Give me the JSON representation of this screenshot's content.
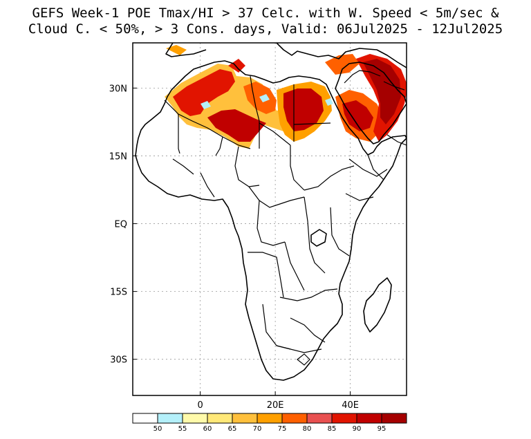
{
  "title": {
    "line1": "GEFS Week-1 POE Tmax/HI > 37 Celc. with W. Speed < 5m/sec &",
    "line2": "Cloud C. < 50%, > 3 Cons. days, Valid: 06Jul2025 - 12Jul2025"
  },
  "map": {
    "region": "Africa",
    "lat_ticks": [
      {
        "label": "30N",
        "value": 30
      },
      {
        "label": "15N",
        "value": 15
      },
      {
        "label": "EQ",
        "value": 0
      },
      {
        "label": "15S",
        "value": -15
      },
      {
        "label": "30S",
        "value": -30
      }
    ],
    "lon_ticks": [
      {
        "label": "0",
        "value": 0
      },
      {
        "label": "20E",
        "value": 20
      },
      {
        "label": "40E",
        "value": 40
      }
    ],
    "lon_range": [
      -18,
      55
    ],
    "lat_range": [
      -38,
      40
    ]
  },
  "colorbar": {
    "colors": [
      "#ffffff",
      "#b4f0fa",
      "#fffaaa",
      "#ffe878",
      "#ffc03c",
      "#ffa000",
      "#ff6000",
      "#e85050",
      "#e11400",
      "#c00000",
      "#a50000"
    ],
    "labels": [
      "50",
      "55",
      "60",
      "65",
      "70",
      "75",
      "80",
      "85",
      "90",
      "95"
    ]
  }
}
